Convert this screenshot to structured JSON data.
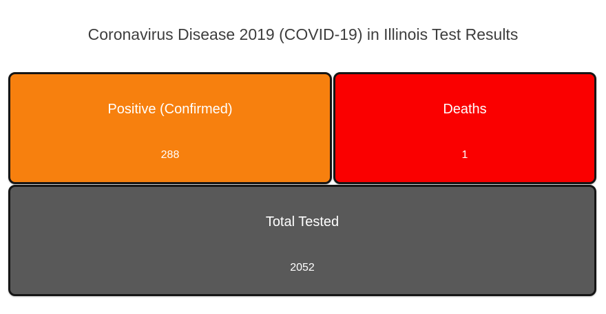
{
  "title": "Coronavirus Disease 2019 (COVID-19) in Illinois Test Results",
  "cards": {
    "positive": {
      "label": "Positive (Confirmed)",
      "value": "288",
      "color": "#f7800e"
    },
    "deaths": {
      "label": "Deaths",
      "value": "1",
      "color": "#fa0000"
    },
    "total": {
      "label": "Total Tested",
      "value": "2052",
      "color": "#595959"
    }
  },
  "colors": {
    "positive_bg": "#f7800e",
    "deaths_bg": "#fa0000",
    "total_bg": "#595959",
    "card_border": "#151515",
    "card_text": "#ffffff",
    "title_text": "#3d3d3d",
    "page_bg": "#ffffff"
  },
  "chart_data": {
    "type": "table",
    "title": "Coronavirus Disease 2019 (COVID-19) in Illinois Test Results",
    "categories": [
      "Positive (Confirmed)",
      "Deaths",
      "Total Tested"
    ],
    "values": [
      288,
      1,
      2052
    ],
    "legend_position": "none",
    "notes": "KPI tile dashboard: positive and deaths tiles on top row, total tested tile spanning full width below"
  }
}
